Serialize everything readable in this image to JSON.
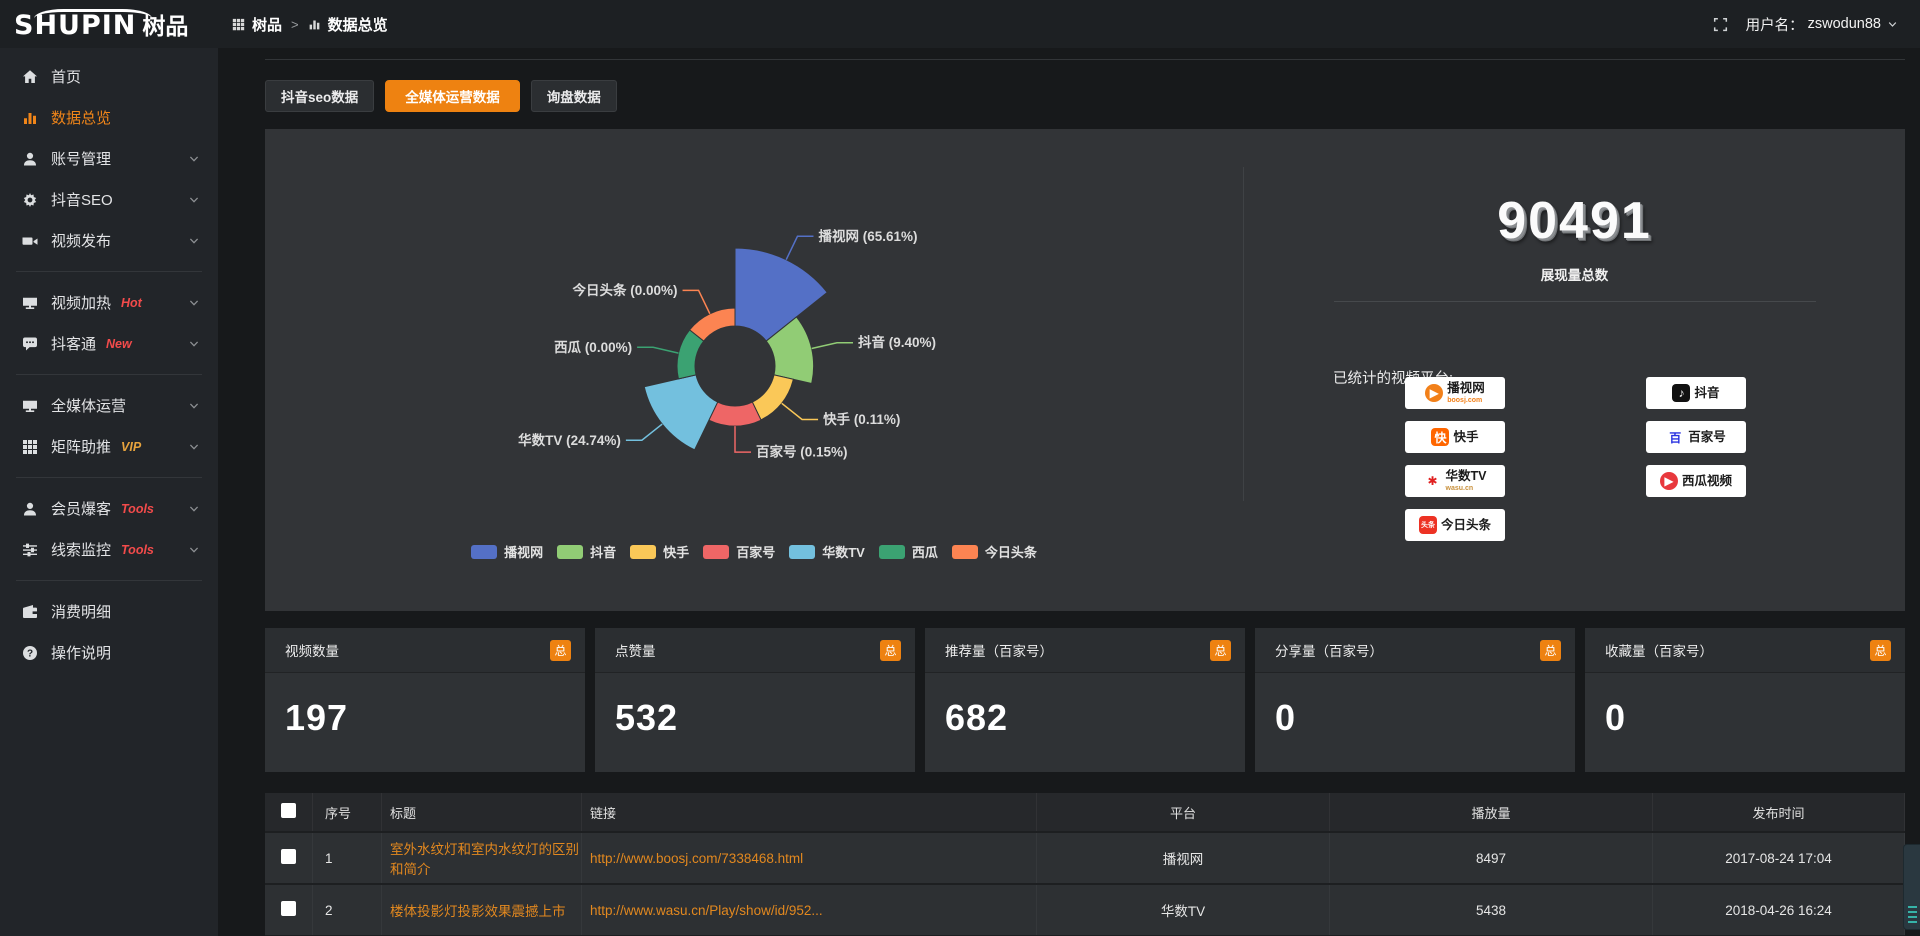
{
  "header": {
    "logo_en": "SHUPIN",
    "logo_cn": "树品",
    "breadcrumb": [
      {
        "label": "树品"
      },
      {
        "label": "数据总览"
      }
    ],
    "breadcrumb_separator": ">",
    "username_label": "用户名：",
    "username": "zswodun88"
  },
  "sidebar": {
    "items": [
      {
        "label": "首页",
        "icon": "home-icon"
      },
      {
        "label": "数据总览",
        "icon": "chart-icon",
        "active": true
      },
      {
        "label": "账号管理",
        "icon": "user-icon",
        "expandable": true
      },
      {
        "label": "抖音SEO",
        "icon": "gear-icon",
        "expandable": true
      },
      {
        "label": "视频发布",
        "icon": "camera-icon",
        "expandable": true,
        "divider_after": true
      },
      {
        "label": "视频加热",
        "icon": "monitor-icon",
        "badge": "Hot",
        "badge_color": "#f34b4b",
        "expandable": true
      },
      {
        "label": "抖客通",
        "icon": "chat-icon",
        "badge": "New",
        "badge_color": "#f34b4b",
        "expandable": true,
        "divider_after": true
      },
      {
        "label": "全媒体运营",
        "icon": "monitor-icon",
        "expandable": true
      },
      {
        "label": "矩阵助推",
        "icon": "grid-icon",
        "badge": "VIP",
        "badge_color": "#e7a33d",
        "expandable": true,
        "divider_after": true
      },
      {
        "label": "会员爆客",
        "icon": "user-icon",
        "badge": "Tools",
        "badge_color": "#f34b4b",
        "expandable": true
      },
      {
        "label": "线索监控",
        "icon": "sliders-icon",
        "badge": "Tools",
        "badge_color": "#f34b4b",
        "expandable": true,
        "divider_after": true
      },
      {
        "label": "消费明细",
        "icon": "wallet-icon"
      },
      {
        "label": "操作说明",
        "icon": "question-icon"
      }
    ]
  },
  "tabs": [
    {
      "label": "抖音seo数据"
    },
    {
      "label": "全媒体运营数据",
      "active": true
    },
    {
      "label": "询盘数据"
    }
  ],
  "chart_data": {
    "type": "pie",
    "subtype": "rose",
    "legend_position": "bottom",
    "label_format": "{name} ({pct}%)",
    "items": [
      {
        "name": "播视网",
        "pct": 65.61,
        "color": "#5470c6"
      },
      {
        "name": "抖音",
        "pct": 9.4,
        "color": "#91cc75"
      },
      {
        "name": "快手",
        "pct": 0.11,
        "color": "#fac858"
      },
      {
        "name": "百家号",
        "pct": 0.15,
        "color": "#ee6666"
      },
      {
        "name": "华数TV",
        "pct": 24.74,
        "color": "#73c0de"
      },
      {
        "name": "西瓜",
        "pct": 0.0,
        "color": "#3ba272"
      },
      {
        "name": "今日头条",
        "pct": 0.0,
        "color": "#fc8452"
      }
    ],
    "legend": [
      "播视网",
      "抖音",
      "快手",
      "百家号",
      "华数TV",
      "西瓜",
      "今日头条"
    ]
  },
  "summary": {
    "total": "90491",
    "total_label": "展现量总数",
    "platforms_label": "已统计的视频平台:",
    "platforms": [
      {
        "name": "播视网",
        "sub": "boosj.com",
        "sub_color": "#f28019",
        "logo_text": "▶",
        "logo_bg": "#f28019",
        "logo_fg": "#ffffff",
        "logo_shape": "circle"
      },
      {
        "name": "抖音",
        "logo_text": "♪",
        "logo_bg": "#111111",
        "logo_fg": "#ffffff",
        "logo_shape": "square"
      },
      {
        "name": "快手",
        "logo_text": "快",
        "logo_bg": "#ff6600",
        "logo_fg": "#ffffff",
        "logo_shape": "square"
      },
      {
        "name": "百家号",
        "logo_text": "百",
        "logo_bg": "transparent",
        "logo_fg": "#2932e1",
        "logo_shape": "square"
      },
      {
        "name": "华数TV",
        "sub": "wasu.cn",
        "sub_color": "#c9913d",
        "logo_text": "✱",
        "logo_bg": "transparent",
        "logo_fg": "#e02020",
        "logo_shape": "square"
      },
      {
        "name": "西瓜视频",
        "logo_text": "▶",
        "logo_bg": "#e8383d",
        "logo_fg": "#ffffff",
        "logo_shape": "circle"
      },
      {
        "name": "今日头条",
        "logo_text": "头条",
        "logo_bg": "#ed3224",
        "logo_fg": "#ffffff",
        "logo_shape": "square"
      }
    ]
  },
  "stat_cards": [
    {
      "title": "视频数量",
      "tag": "总",
      "value": "197"
    },
    {
      "title": "点赞量",
      "tag": "总",
      "value": "532"
    },
    {
      "title": "推荐量（百家号）",
      "tag": "总",
      "value": "682"
    },
    {
      "title": "分享量（百家号）",
      "tag": "总",
      "value": "0"
    },
    {
      "title": "收藏量（百家号）",
      "tag": "总",
      "value": "0"
    }
  ],
  "table": {
    "headers": {
      "index": "序号",
      "title": "标题",
      "link": "链接",
      "platform": "平台",
      "plays": "播放量",
      "published": "发布时间"
    },
    "rows": [
      {
        "index": "1",
        "title": "室外水纹灯和室内水纹灯的区别和简介",
        "link": "http://www.boosj.com/7338468.html",
        "platform": "播视网",
        "plays": "8497",
        "published": "2017-08-24 17:04"
      },
      {
        "index": "2",
        "title": "楼体投影灯投影效果震撼上市",
        "link": "http://www.wasu.cn/Play/show/id/952...",
        "platform": "华数TV",
        "plays": "5438",
        "published": "2018-04-26 16:24"
      }
    ]
  }
}
